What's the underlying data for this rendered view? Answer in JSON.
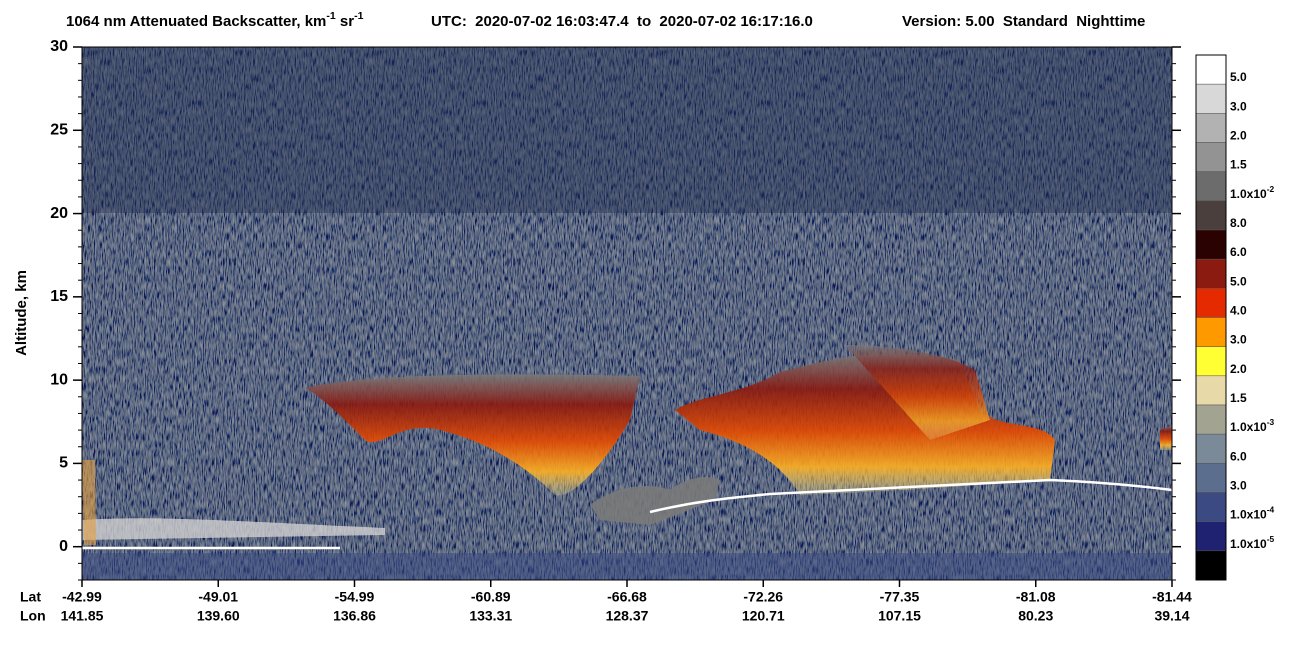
{
  "chart_data": {
    "type": "curtain",
    "title": [
      "1064 nm Attenuated Backscatter, km",
      "-1",
      " sr",
      "-1"
    ],
    "subtitle": "UTC:  2020-07-02 16:03:47.4  to  2020-07-02 16:17:16.0",
    "version": "Version: 5.00  Standard  Nighttime",
    "y_label": "Altitude, km",
    "ylim": [
      -2,
      30
    ],
    "yticks": [
      0,
      5,
      10,
      15,
      20,
      25,
      30
    ],
    "x_rows": [
      {
        "name": "Lat",
        "labels": [
          "-42.99",
          "-49.01",
          "-54.99",
          "-60.89",
          "-66.68",
          "-72.26",
          "-77.35",
          "-81.08",
          "-81.44"
        ]
      },
      {
        "name": "Lon",
        "labels": [
          "141.85",
          "139.60",
          "136.86",
          "133.31",
          "128.37",
          "120.71",
          "107.15",
          "80.23",
          "39.14"
        ]
      }
    ],
    "colorbar": {
      "colors": [
        "#ffffff",
        "#d8d8d8",
        "#b2b2b2",
        "#939393",
        "#6c6c6c",
        "#4a3f3c",
        "#2a0202",
        "#8b1a10",
        "#e62a00",
        "#ff9900",
        "#ffff33",
        "#e8d9a8",
        "#a3a392",
        "#7b8a99",
        "#5b6e8e",
        "#3b4a82",
        "#1f2270",
        "#000000"
      ],
      "labels": [
        [
          "5.0"
        ],
        [
          "3.0"
        ],
        [
          "2.0"
        ],
        [
          "1.5"
        ],
        [
          "1.0x10",
          "-2"
        ],
        [
          "8.0"
        ],
        [
          "6.0"
        ],
        [
          "5.0"
        ],
        [
          "4.0"
        ],
        [
          "3.0"
        ],
        [
          "2.0"
        ],
        [
          "1.5"
        ],
        [
          "1.0x10",
          "-3"
        ],
        [
          "6.0"
        ],
        [
          "3.0"
        ],
        [
          "1.0x10",
          "-4"
        ],
        [
          "1.0x10",
          "-5"
        ]
      ]
    }
  }
}
